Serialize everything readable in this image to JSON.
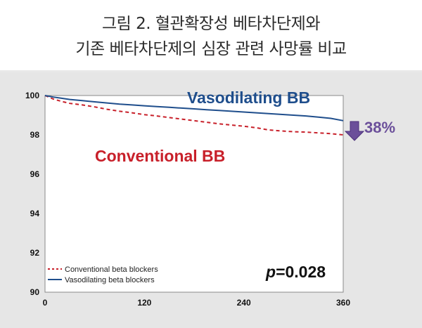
{
  "header": {
    "line1": "그림 2. 혈관확장성 베타차단제와",
    "line2": "기존 베타차단제의 심장 관련 사망률 비교"
  },
  "chart_data": {
    "type": "line",
    "xlim": [
      0,
      360
    ],
    "ylim": [
      90,
      100
    ],
    "x_ticks": [
      "0",
      "120",
      "240",
      "360"
    ],
    "y_ticks": [
      "90",
      "92",
      "94",
      "96",
      "98",
      "100"
    ],
    "grid": false,
    "legend_position": "bottom-left",
    "series": [
      {
        "name": "Conventional beta blockers",
        "color": "#c8202a",
        "style": "dashed",
        "x": [
          0,
          10,
          20,
          30,
          45,
          60,
          75,
          90,
          105,
          120,
          135,
          150,
          165,
          180,
          195,
          210,
          225,
          240,
          255,
          270,
          285,
          300,
          315,
          330,
          345,
          360
        ],
        "y": [
          100,
          99.82,
          99.7,
          99.6,
          99.52,
          99.42,
          99.3,
          99.2,
          99.12,
          99.03,
          98.96,
          98.88,
          98.8,
          98.72,
          98.64,
          98.56,
          98.5,
          98.44,
          98.36,
          98.25,
          98.2,
          98.16,
          98.14,
          98.1,
          98.06,
          98.0
        ]
      },
      {
        "name": "Vasodilating beta blockers",
        "color": "#1f4e8c",
        "style": "solid",
        "x": [
          0,
          10,
          20,
          30,
          45,
          60,
          75,
          90,
          105,
          120,
          135,
          150,
          165,
          180,
          195,
          210,
          225,
          240,
          255,
          270,
          285,
          300,
          315,
          330,
          345,
          360
        ],
        "y": [
          100,
          99.92,
          99.86,
          99.8,
          99.74,
          99.68,
          99.62,
          99.56,
          99.52,
          99.48,
          99.44,
          99.4,
          99.36,
          99.32,
          99.28,
          99.24,
          99.2,
          99.16,
          99.12,
          99.08,
          99.04,
          99.0,
          98.96,
          98.9,
          98.84,
          98.72
        ]
      }
    ],
    "annotations": {
      "vasodilating_label": "Vasodilating BB",
      "conventional_label": "Conventional BB",
      "reduction_label": "38%",
      "p_prefix": "p",
      "p_value": "=0.028"
    },
    "colors": {
      "vasodilating": "#1f4e8c",
      "conventional": "#c8202a",
      "arrow": "#6b4f9a"
    }
  }
}
